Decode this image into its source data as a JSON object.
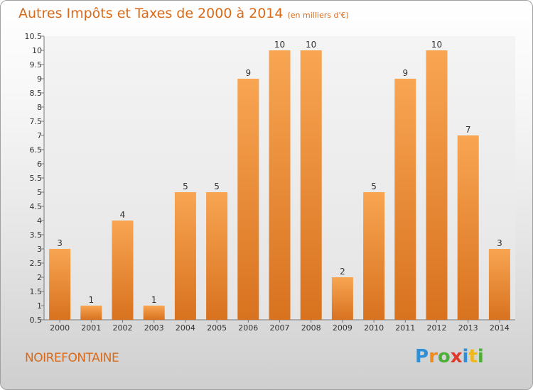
{
  "chart_data": {
    "type": "bar",
    "title": "Autres Impôts et Taxes de 2000 à 2014",
    "subtitle": "(en milliers d'€)",
    "categories": [
      "2000",
      "2001",
      "2002",
      "2003",
      "2004",
      "2005",
      "2006",
      "2007",
      "2008",
      "2009",
      "2010",
      "2011",
      "2012",
      "2013",
      "2014"
    ],
    "values": [
      3,
      1,
      4,
      1,
      5,
      5,
      9,
      10,
      10,
      2,
      5,
      9,
      10,
      7,
      3
    ],
    "data_labels": [
      "3",
      "1",
      "4",
      "1",
      "5",
      "5",
      "9",
      "10",
      "10",
      "2",
      "5",
      "9",
      "10",
      "7",
      "3"
    ],
    "ylim": [
      0.5,
      10.5
    ],
    "yticks": [
      "0.5",
      "1",
      "1.5",
      "2",
      "2.5",
      "3",
      "3.5",
      "4",
      "4.5",
      "5",
      "5.5",
      "6",
      "6.5",
      "7",
      "7.5",
      "8",
      "8.5",
      "9",
      "9.5",
      "10",
      "10.5"
    ],
    "grid": false,
    "bar_color": "#f0913a"
  },
  "location_label": "NOIREFONTAINE",
  "logo": {
    "letters": [
      "P",
      "r",
      "o",
      "x",
      "i",
      "t",
      "i"
    ],
    "colors": [
      "#2e8fd6",
      "#f08a1a",
      "#4fae3a",
      "#e03a2a",
      "#2e8fd6",
      "#f0b71a",
      "#4fae3a"
    ]
  }
}
